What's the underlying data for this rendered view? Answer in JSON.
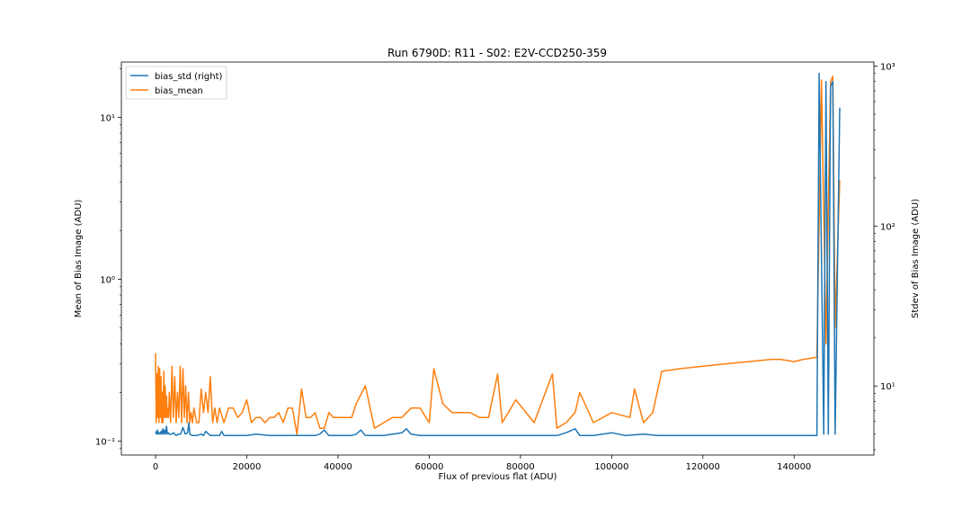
{
  "chart_data": {
    "type": "line",
    "title": "Run 6790D: R11 - S02: E2V-CCD250-359",
    "xlabel": "Flux of previous flat (ADU)",
    "ylabel": "Mean of Bias Image (ADU)",
    "ylabel_right": "Stdev of Bias Image (ADU)",
    "x_ticks": [
      "0",
      "20000",
      "40000",
      "60000",
      "80000",
      "100000",
      "120000",
      "140000"
    ],
    "y_left_ticks": [
      "10⁻¹",
      "10⁰",
      "10¹"
    ],
    "y_right_ticks": [
      "10¹",
      "10²",
      "10³"
    ],
    "xlim": [
      -7500,
      157500
    ],
    "ylim_left": [
      0.082,
      22
    ],
    "ylim_right": [
      3.7,
      1060
    ],
    "y_left_scale": "log",
    "y_right_scale": "log",
    "legend_position": "top-left",
    "legend": [
      {
        "label": "bias_std (right)",
        "color": "#1f77b4"
      },
      {
        "label": "bias_mean",
        "color": "#ff7f0e"
      }
    ],
    "series": [
      {
        "name": "bias_mean",
        "axis": "left",
        "color": "#ff7f0e",
        "x": [
          0,
          150,
          300,
          450,
          600,
          750,
          900,
          1050,
          1200,
          1350,
          1500,
          1650,
          1800,
          1950,
          2100,
          2250,
          2400,
          2550,
          2700,
          2850,
          3000,
          3300,
          3600,
          3900,
          4200,
          4500,
          4800,
          5100,
          5400,
          5700,
          6000,
          6300,
          6600,
          6900,
          7200,
          7500,
          7800,
          8100,
          8400,
          9000,
          9500,
          10000,
          10500,
          11000,
          11500,
          12000,
          12500,
          13000,
          13500,
          14000,
          15000,
          16000,
          17000,
          18000,
          19000,
          20000,
          21000,
          22000,
          23000,
          24000,
          25000,
          26000,
          27000,
          28000,
          29000,
          30000,
          31000,
          32000,
          33000,
          34000,
          35000,
          36000,
          37000,
          38000,
          39000,
          40000,
          41000,
          42000,
          43000,
          44000,
          46000,
          48000,
          50000,
          52000,
          54000,
          56000,
          58000,
          60000,
          61000,
          63000,
          65000,
          67000,
          69000,
          71000,
          73000,
          75000,
          76000,
          79000,
          83000,
          87000,
          88000,
          90000,
          92000,
          93000,
          96000,
          100000,
          104000,
          105000,
          107000,
          109000,
          111000,
          115000,
          120000,
          125000,
          130000,
          135000,
          137000,
          140000,
          142000,
          145000,
          146000,
          147000,
          148000,
          148500,
          149000,
          150000
        ],
        "y": [
          0.35,
          0.13,
          0.26,
          0.14,
          0.29,
          0.13,
          0.28,
          0.14,
          0.25,
          0.13,
          0.2,
          0.13,
          0.27,
          0.14,
          0.22,
          0.14,
          0.19,
          0.14,
          0.16,
          0.14,
          0.2,
          0.13,
          0.29,
          0.14,
          0.25,
          0.13,
          0.2,
          0.14,
          0.29,
          0.13,
          0.28,
          0.14,
          0.22,
          0.13,
          0.2,
          0.13,
          0.15,
          0.13,
          0.16,
          0.13,
          0.13,
          0.21,
          0.15,
          0.2,
          0.15,
          0.25,
          0.13,
          0.16,
          0.13,
          0.16,
          0.13,
          0.16,
          0.16,
          0.14,
          0.15,
          0.18,
          0.13,
          0.14,
          0.14,
          0.13,
          0.14,
          0.14,
          0.15,
          0.13,
          0.16,
          0.16,
          0.11,
          0.21,
          0.14,
          0.14,
          0.15,
          0.12,
          0.12,
          0.15,
          0.14,
          0.14,
          0.14,
          0.14,
          0.14,
          0.17,
          0.22,
          0.12,
          0.13,
          0.14,
          0.14,
          0.16,
          0.16,
          0.13,
          0.28,
          0.17,
          0.15,
          0.15,
          0.15,
          0.14,
          0.14,
          0.26,
          0.13,
          0.18,
          0.13,
          0.26,
          0.12,
          0.13,
          0.15,
          0.2,
          0.13,
          0.15,
          0.14,
          0.21,
          0.13,
          0.15,
          0.27,
          0.28,
          0.29,
          0.3,
          0.31,
          0.32,
          0.32,
          0.31,
          0.32,
          0.33,
          17,
          0.4,
          16.5,
          18,
          0.5,
          4.1
        ]
      },
      {
        "name": "bias_std (right)",
        "axis": "right",
        "color": "#1f77b4",
        "x": [
          0,
          200,
          400,
          600,
          800,
          1000,
          1200,
          1400,
          1600,
          1800,
          2000,
          2200,
          2400,
          2600,
          2800,
          3000,
          3500,
          4000,
          4500,
          5000,
          5500,
          6000,
          6500,
          7000,
          7300,
          7500,
          8000,
          9000,
          10000,
          10500,
          11000,
          12000,
          13000,
          14000,
          14500,
          15000,
          17000,
          20000,
          22000,
          25000,
          30000,
          35000,
          36000,
          37000,
          38000,
          40000,
          43000,
          44000,
          45000,
          46000,
          50000,
          52000,
          54000,
          55000,
          56000,
          58000,
          60000,
          65000,
          70000,
          75000,
          80000,
          85000,
          88000,
          90000,
          92000,
          93000,
          96000,
          100000,
          103000,
          107000,
          110000,
          115000,
          120000,
          130000,
          140000,
          145000,
          145500,
          146500,
          147000,
          147500,
          148000,
          148500,
          149000,
          150000
        ],
        "y": [
          5.2,
          5.0,
          5.3,
          5.0,
          5.1,
          5.0,
          5.2,
          5.0,
          5.4,
          5.0,
          5.3,
          5.0,
          5.6,
          5.0,
          5.1,
          5.0,
          5.0,
          5.1,
          4.9,
          5.0,
          5.0,
          5.5,
          5.0,
          5.1,
          5.9,
          5.0,
          4.9,
          4.9,
          5.0,
          4.9,
          5.2,
          4.9,
          4.9,
          4.9,
          5.2,
          4.9,
          4.9,
          4.9,
          5.0,
          4.9,
          4.9,
          4.9,
          5.0,
          5.3,
          4.9,
          4.9,
          4.9,
          5.0,
          5.3,
          4.9,
          4.9,
          5.0,
          5.1,
          5.4,
          5.0,
          4.9,
          4.9,
          4.9,
          4.9,
          4.9,
          4.9,
          4.9,
          4.9,
          5.1,
          5.4,
          4.9,
          4.9,
          5.1,
          4.9,
          5.0,
          4.9,
          4.9,
          4.9,
          4.9,
          4.9,
          4.9,
          900,
          5.0,
          800,
          5.0,
          750,
          800,
          5.0,
          550
        ]
      }
    ]
  }
}
